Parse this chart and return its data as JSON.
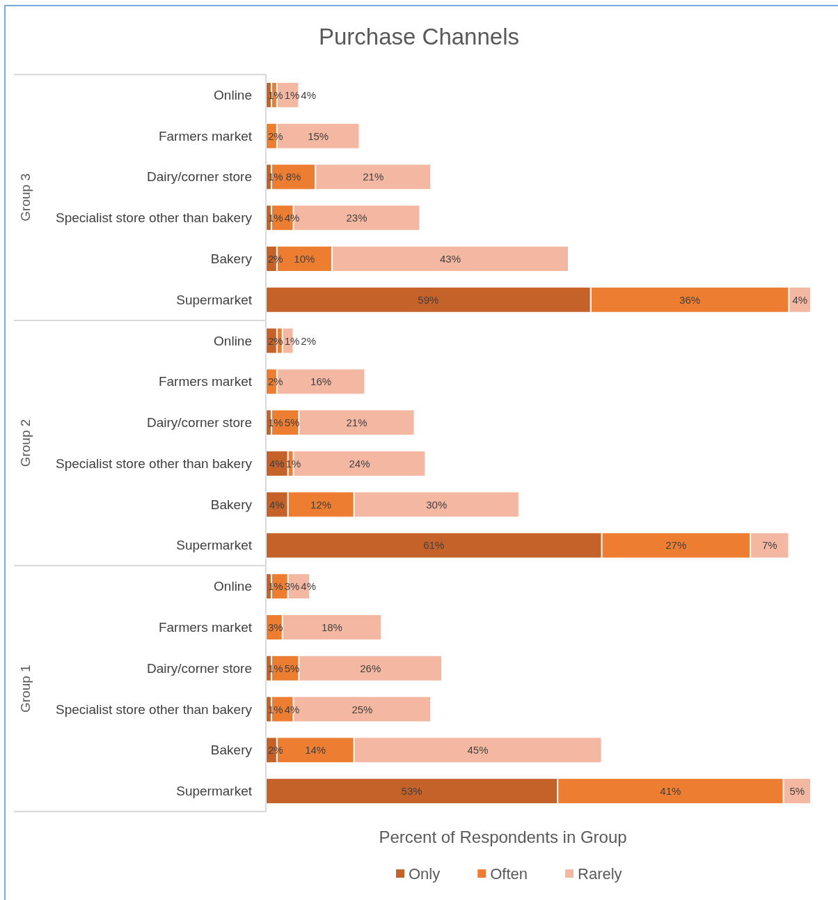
{
  "chart_data": {
    "type": "bar",
    "orientation": "horizontal",
    "stacked": true,
    "title": "Purchase Channels",
    "xlabel": "Percent of Respondents in Group",
    "tick_labels": "y",
    "legend": "bottom",
    "categories": [
      "Online",
      "Farmers market",
      "Dairy/corner store",
      "Specialist store other than bakery",
      "Bakery",
      "Supermarket",
      "Online",
      "Farmers market",
      "Dairy/corner store",
      "Specialist store other than bakery",
      "Bakery",
      "Supermarket",
      "Online",
      "Farmers market",
      "Dairy/corner store",
      "Specialist store other than bakery",
      "Bakery",
      "Supermarket"
    ],
    "annotations": [
      "Group 3",
      "Group 2",
      "Group 1"
    ],
    "series": [
      {
        "name": "Only",
        "color": "#c4622a",
        "values": [
          1,
          null,
          1,
          1,
          2,
          59,
          2,
          null,
          1,
          4,
          4,
          61,
          1,
          null,
          1,
          1,
          2,
          53
        ],
        "value_labels": [
          "1%",
          null,
          "1%",
          "1%",
          "2%",
          "59%",
          "2%",
          null,
          "1%",
          "4%",
          "4%",
          "61%",
          "1%",
          null,
          "1%",
          "1%",
          "2%",
          "53%"
        ]
      },
      {
        "name": "Often",
        "color": "#ed7d31",
        "values": [
          1,
          2,
          8,
          4,
          10,
          36,
          1,
          2,
          5,
          1,
          12,
          27,
          3,
          3,
          5,
          4,
          14,
          41
        ],
        "value_labels": [
          "1%",
          "2%",
          "8%",
          "4%",
          "10%",
          "36%",
          "1%",
          "2%",
          "5%",
          "1%",
          "12%",
          "27%",
          "3%",
          "3%",
          "5%",
          "4%",
          "14%",
          "41%"
        ]
      },
      {
        "name": "Rarely",
        "color": "#f4b8a2",
        "values": [
          4,
          15,
          21,
          23,
          43,
          4,
          2,
          16,
          21,
          24,
          30,
          7,
          4,
          18,
          26,
          25,
          45,
          5
        ],
        "value_labels": [
          "4%",
          "15%",
          "21%",
          "23%",
          "43%",
          "4%",
          "2%",
          "16%",
          "21%",
          "24%",
          "30%",
          "7%",
          "4%",
          "18%",
          "26%",
          "25%",
          "45%",
          "5%"
        ]
      }
    ]
  }
}
